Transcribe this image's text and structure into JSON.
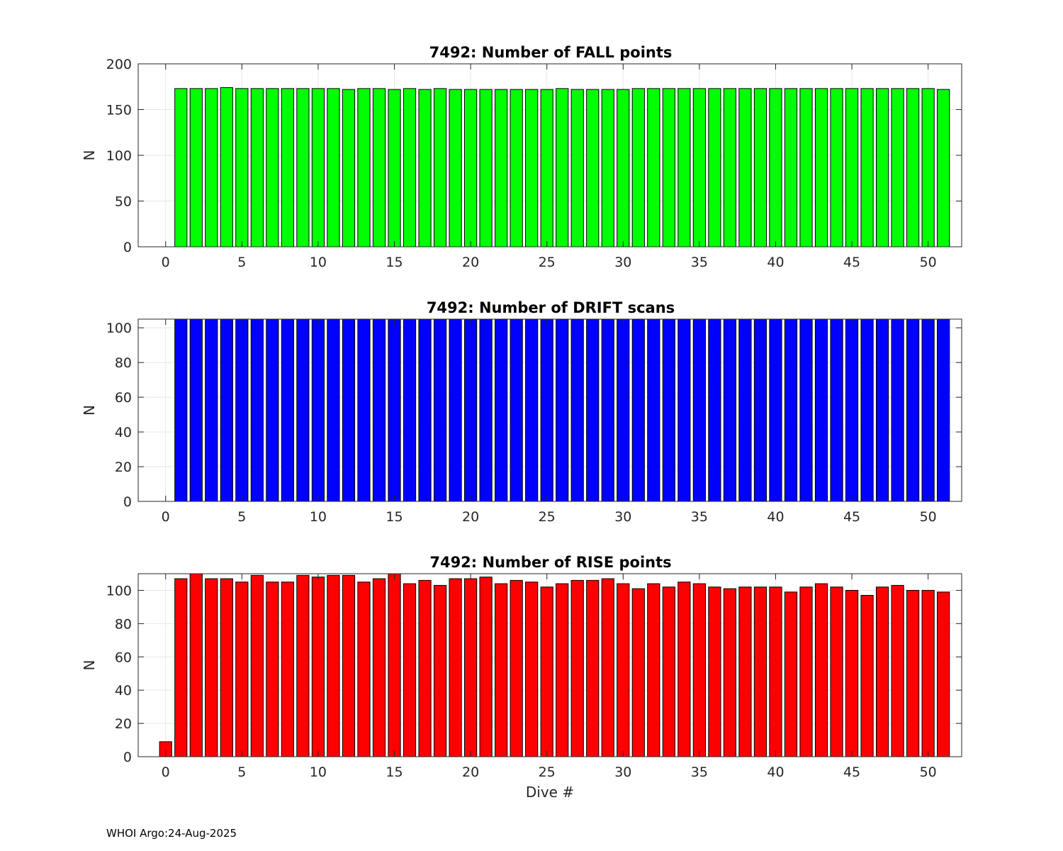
{
  "footer": "WHOI Argo:24-Aug-2025",
  "chart_data": [
    {
      "type": "bar",
      "title": "7492: Number of FALL points",
      "xlabel": "",
      "ylabel": "N",
      "color": "#00ff00",
      "xlim": [
        -1.8,
        52.2
      ],
      "ylim": [
        0,
        200
      ],
      "xticks": [
        0,
        5,
        10,
        15,
        20,
        25,
        30,
        35,
        40,
        45,
        50
      ],
      "yticks": [
        0,
        50,
        100,
        150,
        200
      ],
      "grid": true,
      "x": [
        0,
        1,
        2,
        3,
        4,
        5,
        6,
        7,
        8,
        9,
        10,
        11,
        12,
        13,
        14,
        15,
        16,
        17,
        18,
        19,
        20,
        21,
        22,
        23,
        24,
        25,
        26,
        27,
        28,
        29,
        30,
        31,
        32,
        33,
        34,
        35,
        36,
        37,
        38,
        39,
        40,
        41,
        42,
        43,
        44,
        45,
        46,
        47,
        48,
        49,
        50,
        51
      ],
      "values": [
        0,
        173,
        173,
        173,
        174,
        173,
        173,
        173,
        173,
        173,
        173,
        173,
        172,
        173,
        173,
        172,
        173,
        172,
        173,
        172,
        172,
        172,
        172,
        172,
        172,
        172,
        173,
        172,
        172,
        172,
        172,
        173,
        173,
        173,
        173,
        173,
        173,
        173,
        173,
        173,
        173,
        173,
        173,
        173,
        173,
        173,
        173,
        173,
        173,
        173,
        173,
        172
      ]
    },
    {
      "type": "bar",
      "title": "7492: Number of DRIFT scans",
      "xlabel": "",
      "ylabel": "N",
      "color": "#0000ff",
      "xlim": [
        -1.8,
        52.2
      ],
      "ylim": [
        0,
        105
      ],
      "xticks": [
        0,
        5,
        10,
        15,
        20,
        25,
        30,
        35,
        40,
        45,
        50
      ],
      "yticks": [
        0,
        20,
        40,
        60,
        80,
        100
      ],
      "grid": true,
      "x": [
        0,
        1,
        2,
        3,
        4,
        5,
        6,
        7,
        8,
        9,
        10,
        11,
        12,
        13,
        14,
        15,
        16,
        17,
        18,
        19,
        20,
        21,
        22,
        23,
        24,
        25,
        26,
        27,
        28,
        29,
        30,
        31,
        32,
        33,
        34,
        35,
        36,
        37,
        38,
        39,
        40,
        41,
        42,
        43,
        44,
        45,
        46,
        47,
        48,
        49,
        50,
        51
      ],
      "values": [
        0,
        105,
        105,
        105,
        105,
        105,
        105,
        105,
        105,
        105,
        105,
        105,
        105,
        105,
        105,
        105,
        105,
        105,
        105,
        105,
        105,
        105,
        105,
        105,
        105,
        105,
        105,
        105,
        105,
        105,
        105,
        105,
        105,
        105,
        105,
        105,
        105,
        105,
        105,
        105,
        105,
        105,
        105,
        105,
        105,
        105,
        105,
        105,
        105,
        105,
        105,
        105
      ]
    },
    {
      "type": "bar",
      "title": "7492: Number of RISE points",
      "xlabel": "Dive #",
      "ylabel": "N",
      "color": "#ff0000",
      "xlim": [
        -1.8,
        52.2
      ],
      "ylim": [
        0,
        110
      ],
      "xticks": [
        0,
        5,
        10,
        15,
        20,
        25,
        30,
        35,
        40,
        45,
        50
      ],
      "yticks": [
        0,
        20,
        40,
        60,
        80,
        100
      ],
      "grid": true,
      "x": [
        0,
        1,
        2,
        3,
        4,
        5,
        6,
        7,
        8,
        9,
        10,
        11,
        12,
        13,
        14,
        15,
        16,
        17,
        18,
        19,
        20,
        21,
        22,
        23,
        24,
        25,
        26,
        27,
        28,
        29,
        30,
        31,
        32,
        33,
        34,
        35,
        36,
        37,
        38,
        39,
        40,
        41,
        42,
        43,
        44,
        45,
        46,
        47,
        48,
        49,
        50,
        51
      ],
      "values": [
        9,
        107,
        110,
        107,
        107,
        105,
        109,
        105,
        105,
        109,
        108,
        109,
        109,
        105,
        107,
        110,
        104,
        106,
        103,
        107,
        107,
        108,
        104,
        106,
        105,
        102,
        104,
        106,
        106,
        107,
        104,
        101,
        104,
        102,
        105,
        104,
        102,
        101,
        102,
        102,
        102,
        99,
        102,
        104,
        102,
        100,
        97,
        102,
        103,
        100,
        100,
        99
      ]
    }
  ]
}
